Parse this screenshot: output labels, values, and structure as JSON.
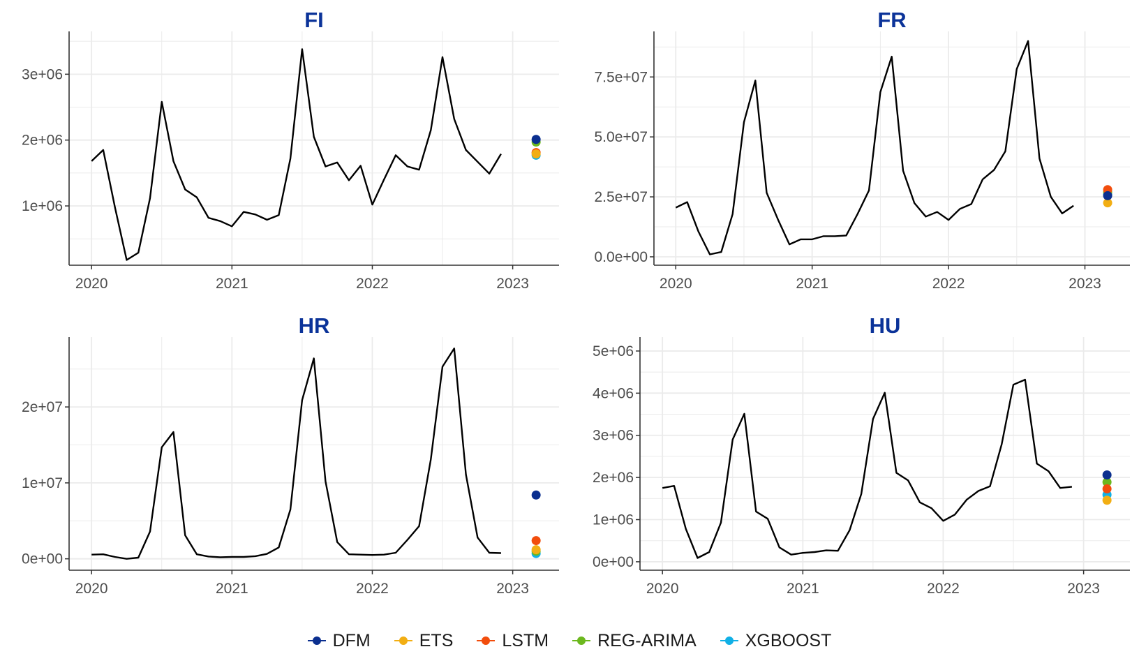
{
  "chart_data": [
    {
      "type": "line",
      "title": "FI",
      "x_ticks": [
        "2020",
        "2021",
        "2022",
        "2023"
      ],
      "y_ticks": [
        "1e+06",
        "2e+06",
        "3e+06"
      ],
      "y_tick_values": [
        1000000,
        2000000,
        3000000
      ],
      "xlim": [
        2019.84,
        2023.33
      ],
      "ylim": [
        100000,
        3650000
      ],
      "grid": true,
      "series": [
        {
          "values": [
            1680000,
            1850000,
            980000,
            180000,
            290000,
            1120000,
            2580000,
            1680000,
            1250000,
            1130000,
            820000,
            770000,
            690000,
            910000,
            870000,
            790000,
            860000,
            1720000,
            3380000,
            2050000,
            1600000,
            1660000,
            1390000,
            1610000,
            1020000,
            1400000,
            1770000,
            1600000,
            1550000,
            2150000,
            3260000,
            2320000,
            1850000,
            1670000,
            1490000,
            1790000
          ]
        }
      ],
      "forecasts": [
        {
          "model": "DFM",
          "value": 2010000
        },
        {
          "model": "ETS",
          "value": 1790000
        },
        {
          "model": "LSTM",
          "value": 1810000
        },
        {
          "model": "REG-ARIMA",
          "value": 1970000
        },
        {
          "model": "XGBOOST",
          "value": 1770000
        }
      ]
    },
    {
      "type": "line",
      "title": "FR",
      "x_ticks": [
        "2020",
        "2021",
        "2022",
        "2023"
      ],
      "y_ticks": [
        "0.0e+00",
        "2.5e+07",
        "5.0e+07",
        "7.5e+07"
      ],
      "y_tick_values": [
        0,
        25000000,
        50000000,
        75000000
      ],
      "xlim": [
        2019.84,
        2023.33
      ],
      "ylim": [
        -3500000,
        94000000
      ],
      "grid": true,
      "series": [
        {
          "values": [
            20500000,
            22800000,
            10500000,
            1000000,
            2000000,
            17800000,
            56200000,
            73500000,
            26700000,
            15500000,
            5200000,
            7300000,
            7300000,
            8600000,
            8600000,
            8900000,
            17900000,
            27700000,
            68700000,
            83500000,
            35900000,
            22400000,
            16800000,
            18700000,
            15400000,
            20000000,
            22000000,
            32300000,
            36200000,
            44000000,
            78300000,
            90000000,
            41000000,
            25000000,
            18100000,
            21300000
          ]
        }
      ],
      "forecasts": [
        {
          "model": "DFM",
          "value": 25500000
        },
        {
          "model": "ETS",
          "value": 22500000
        },
        {
          "model": "LSTM",
          "value": 28000000
        },
        {
          "model": "REG-ARIMA",
          "value": 27000000
        },
        {
          "model": "XGBOOST",
          "value": 26000000
        }
      ]
    },
    {
      "type": "line",
      "title": "HR",
      "x_ticks": [
        "2020",
        "2021",
        "2022",
        "2023"
      ],
      "y_ticks": [
        "0e+00",
        "1e+07",
        "2e+07"
      ],
      "y_tick_values": [
        0,
        10000000,
        20000000
      ],
      "xlim": [
        2019.84,
        2023.33
      ],
      "ylim": [
        -1500000,
        29200000
      ],
      "grid": true,
      "series": [
        {
          "values": [
            550000,
            600000,
            250000,
            0,
            150000,
            3600000,
            14700000,
            16700000,
            3100000,
            600000,
            300000,
            200000,
            250000,
            250000,
            350000,
            650000,
            1500000,
            6500000,
            20900000,
            26400000,
            10200000,
            2200000,
            600000,
            550000,
            500000,
            550000,
            800000,
            2500000,
            4300000,
            13100000,
            25300000,
            27700000,
            11100000,
            2800000,
            800000,
            750000
          ]
        }
      ],
      "forecasts": [
        {
          "model": "DFM",
          "value": 8400000
        },
        {
          "model": "ETS",
          "value": 1200000
        },
        {
          "model": "LSTM",
          "value": 2400000
        },
        {
          "model": "REG-ARIMA",
          "value": 1000000
        },
        {
          "model": "XGBOOST",
          "value": 700000
        }
      ]
    },
    {
      "type": "line",
      "title": "HU",
      "x_ticks": [
        "2020",
        "2021",
        "2022",
        "2023"
      ],
      "y_ticks": [
        "0e+00",
        "1e+06",
        "2e+06",
        "3e+06",
        "4e+06",
        "5e+06"
      ],
      "y_tick_values": [
        0,
        1000000,
        2000000,
        3000000,
        4000000,
        5000000
      ],
      "xlim": [
        2019.84,
        2023.33
      ],
      "ylim": [
        -200000,
        5330000
      ],
      "grid": true,
      "series": [
        {
          "values": [
            1750000,
            1800000,
            780000,
            90000,
            230000,
            930000,
            2900000,
            3510000,
            1190000,
            1020000,
            340000,
            170000,
            210000,
            230000,
            270000,
            260000,
            750000,
            1610000,
            3390000,
            4010000,
            2110000,
            1930000,
            1410000,
            1270000,
            970000,
            1120000,
            1470000,
            1680000,
            1790000,
            2790000,
            4200000,
            4320000,
            2330000,
            2150000,
            1750000,
            1780000
          ]
        }
      ],
      "forecasts": [
        {
          "model": "DFM",
          "value": 2060000
        },
        {
          "model": "ETS",
          "value": 1460000
        },
        {
          "model": "LSTM",
          "value": 1730000
        },
        {
          "model": "REG-ARIMA",
          "value": 1890000
        },
        {
          "model": "XGBOOST",
          "value": 1590000
        }
      ]
    }
  ],
  "legend": {
    "position": "bottom",
    "items": [
      {
        "label": "DFM",
        "color": "#0b2f8f"
      },
      {
        "label": "ETS",
        "color": "#f2ae13"
      },
      {
        "label": "LSTM",
        "color": "#f24d0c"
      },
      {
        "label": "REG-ARIMA",
        "color": "#6cb81e"
      },
      {
        "label": "XGBOOST",
        "color": "#10b0e6"
      }
    ]
  },
  "forecast_date": "2023-03",
  "series_start": "2020-01",
  "colors": {
    "title": "#0b3399",
    "line": "#000000",
    "grid": "#ebebeb"
  }
}
